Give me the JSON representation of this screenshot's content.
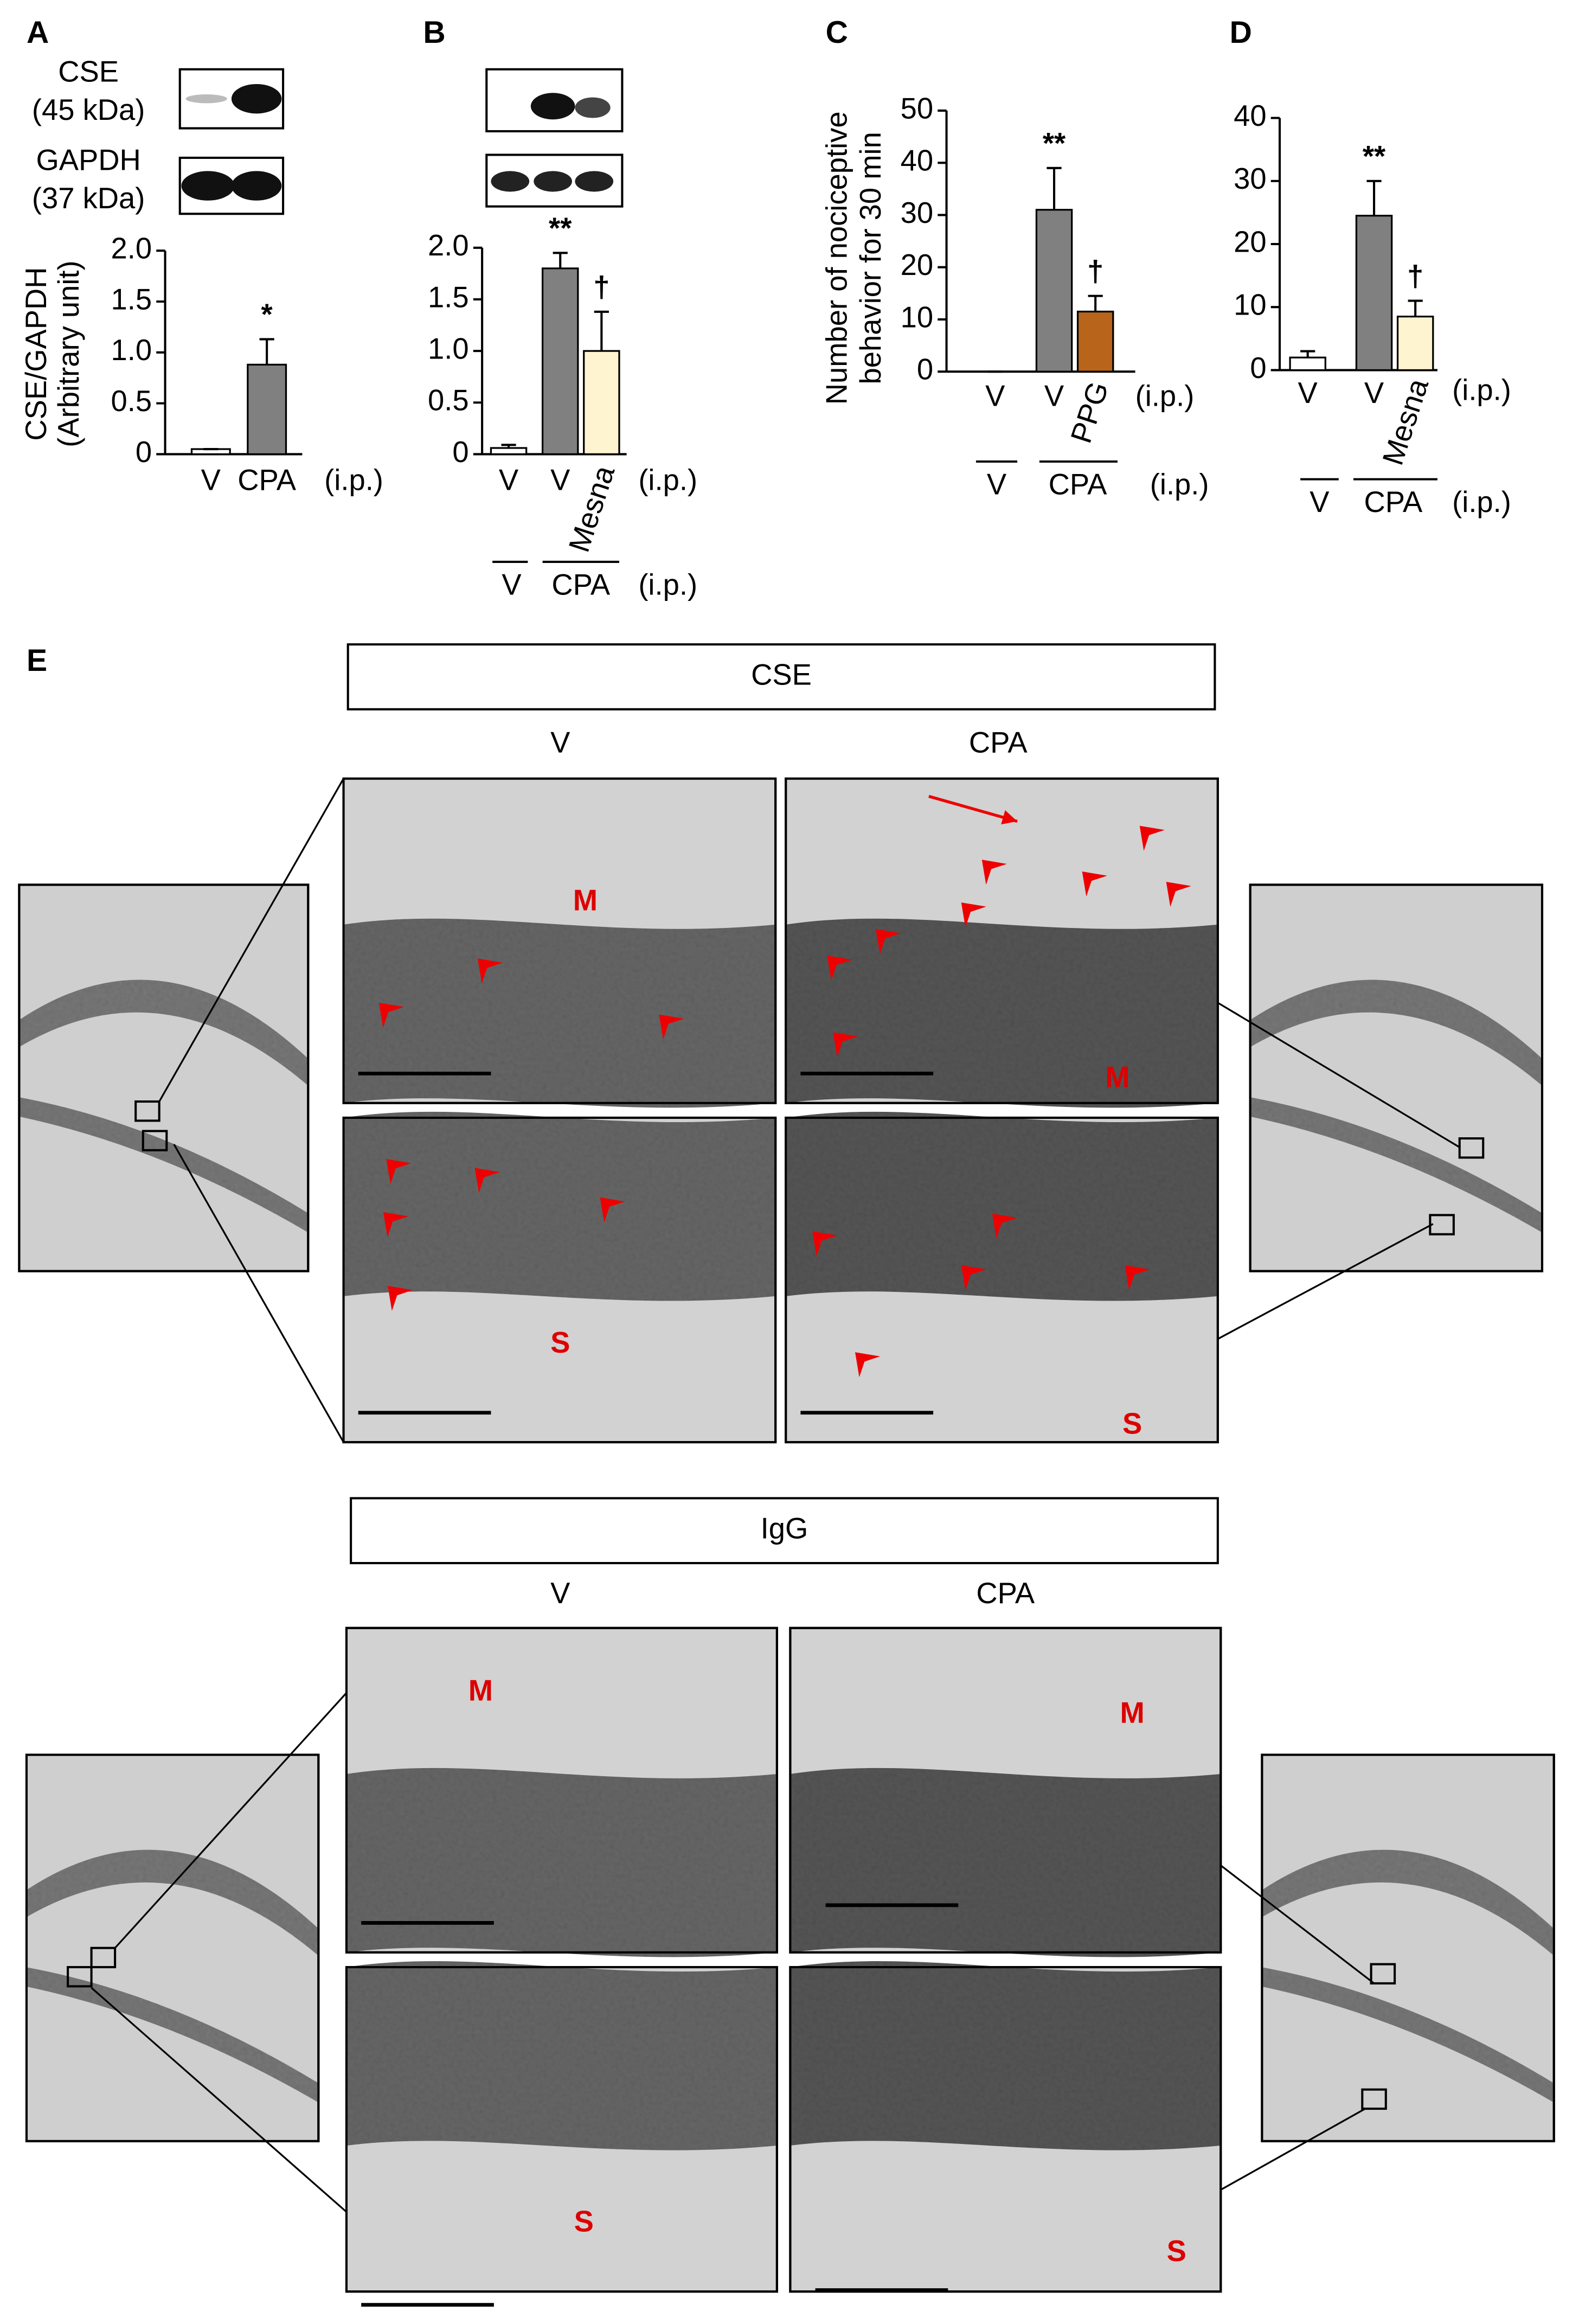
{
  "chart_data": [
    {
      "type": "bar",
      "label": "A",
      "ylabel": [
        "CSE/GAPDH",
        "(Arbitrary unit)"
      ],
      "blot_labels": [
        "CSE",
        "(45 kDa)",
        "GAPDH",
        "(37 kDa)"
      ],
      "categories": [
        "V",
        "CPA"
      ],
      "values": [
        0.05,
        0.88
      ],
      "errors": [
        0,
        0.25
      ],
      "colors": [
        "#ffffff",
        "#808080"
      ],
      "significance": [
        null,
        "*"
      ],
      "route": "(i.p.)",
      "ylim": [
        0,
        2
      ],
      "yticks": [
        0,
        0.5,
        {
          "value": 1,
          "label": "1.0"
        },
        1.5,
        {
          "value": 2,
          "label": "2.0"
        }
      ]
    },
    {
      "type": "bar",
      "label": "B",
      "categories": [
        "V",
        "V",
        "Mesna"
      ],
      "values": [
        0.06,
        1.8,
        1.0
      ],
      "errors": [
        0.03,
        0.15,
        0.38
      ],
      "colors": [
        "#ffffff",
        "#808080",
        "#fff4d0"
      ],
      "significance": [
        null,
        "**",
        "†"
      ],
      "route": "(i.p.)",
      "groups": [
        "V",
        "CPA"
      ],
      "ylim": [
        0,
        2
      ],
      "yticks": [
        0,
        0.5,
        {
          "value": 1,
          "label": "1.0"
        },
        1.5,
        {
          "value": 2,
          "label": "2.0"
        }
      ]
    },
    {
      "type": "bar",
      "label": "C",
      "ylabel": [
        "Number of nociceptive",
        "behavior for 30 min"
      ],
      "categories": [
        "V",
        "V",
        "PPG"
      ],
      "values": [
        0,
        31,
        11.5
      ],
      "errors": [
        0,
        8,
        3
      ],
      "colors": [
        "#ffffff",
        "#808080",
        "#b8651b"
      ],
      "significance": [
        null,
        "**",
        "†"
      ],
      "route": "(i.p.)",
      "groups": [
        "V",
        "CPA"
      ],
      "ylim": [
        0,
        50
      ],
      "yticks": [
        0,
        10,
        20,
        30,
        40,
        50
      ]
    },
    {
      "type": "bar",
      "label": "D",
      "categories": [
        "V",
        "V",
        "Mesna"
      ],
      "values": [
        2,
        24.5,
        8.5
      ],
      "errors": [
        1,
        5.5,
        2.5
      ],
      "colors": [
        "#ffffff",
        "#808080",
        "#fff4d0"
      ],
      "significance": [
        null,
        "**",
        "†"
      ],
      "route": "(i.p.)",
      "groups": [
        "V",
        "CPA"
      ],
      "ylim": [
        0,
        40
      ],
      "yticks": [
        0,
        10,
        20,
        30,
        40
      ]
    }
  ],
  "panel_e": {
    "label": "E",
    "sections": [
      {
        "title": "CSE",
        "columns": [
          "V",
          "CPA"
        ],
        "regions": [
          "M",
          "S"
        ]
      },
      {
        "title": "IgG",
        "columns": [
          "V",
          "CPA"
        ],
        "regions": [
          "M",
          "S"
        ]
      }
    ]
  }
}
